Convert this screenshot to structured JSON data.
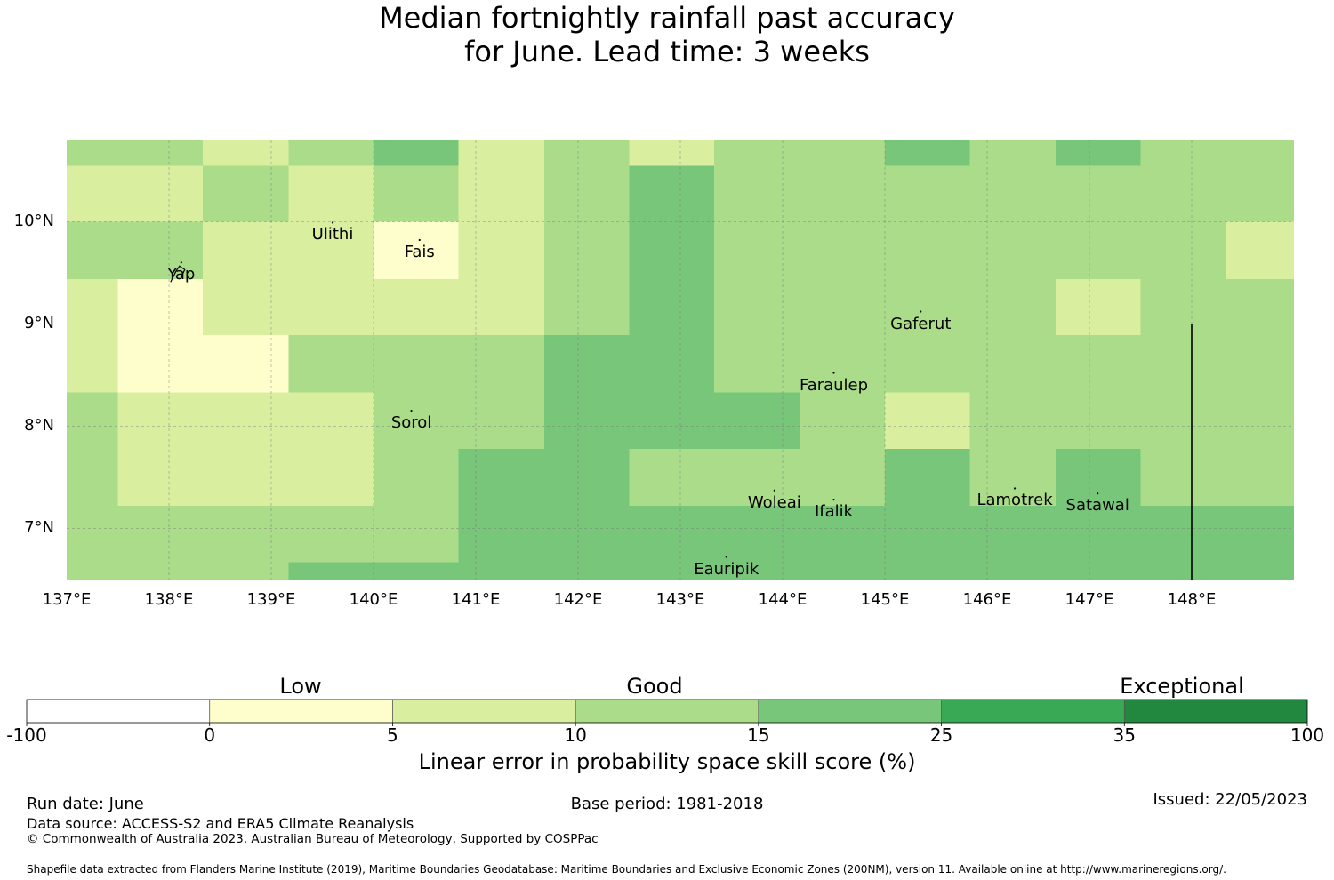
{
  "title": {
    "line1": "Median fortnightly rainfall past accuracy",
    "line2": "for June. Lead time: 3 weeks"
  },
  "map": {
    "lon_range": [
      137,
      149
    ],
    "lat_range": [
      6.5,
      10.8
    ],
    "x_ticks": [
      "137°E",
      "138°E",
      "139°E",
      "140°E",
      "141°E",
      "142°E",
      "143°E",
      "144°E",
      "145°E",
      "146°E",
      "147°E",
      "148°E"
    ],
    "y_ticks": [
      "10°N",
      "9°N",
      "8°N",
      "7°N"
    ],
    "gridlines": true,
    "cell_colors": [
      "#fefecc",
      "#d9ee9f",
      "#aadc89",
      "#78c67a"
    ],
    "grid_rows": [
      {
        "lat_top": 10.8,
        "lat_bottom": 10.55,
        "cells": [
          [
            137.0,
            138.33,
            2
          ],
          [
            138.33,
            139.17,
            1
          ],
          [
            139.17,
            140.0,
            2
          ],
          [
            140.0,
            140.83,
            3
          ],
          [
            140.83,
            141.67,
            1
          ],
          [
            141.67,
            142.5,
            2
          ],
          [
            142.5,
            143.33,
            1
          ],
          [
            143.33,
            145.0,
            2
          ],
          [
            145.0,
            145.83,
            3
          ],
          [
            145.83,
            146.67,
            2
          ],
          [
            146.67,
            147.5,
            3
          ],
          [
            147.5,
            149.0,
            2
          ]
        ]
      },
      {
        "lat_top": 10.55,
        "lat_bottom": 10.0,
        "cells": [
          [
            137.0,
            138.33,
            1
          ],
          [
            138.33,
            139.17,
            2
          ],
          [
            139.17,
            140.0,
            1
          ],
          [
            140.0,
            140.83,
            2
          ],
          [
            140.83,
            141.67,
            1
          ],
          [
            141.67,
            142.5,
            2
          ],
          [
            142.5,
            143.33,
            3
          ],
          [
            143.33,
            149.0,
            2
          ]
        ]
      },
      {
        "lat_top": 10.0,
        "lat_bottom": 9.44,
        "cells": [
          [
            137.0,
            138.33,
            2
          ],
          [
            138.33,
            140.0,
            1
          ],
          [
            140.0,
            140.83,
            0
          ],
          [
            140.83,
            141.67,
            1
          ],
          [
            141.67,
            142.5,
            2
          ],
          [
            142.5,
            143.33,
            3
          ],
          [
            143.33,
            148.33,
            2
          ],
          [
            148.33,
            149.0,
            1
          ]
        ]
      },
      {
        "lat_top": 9.44,
        "lat_bottom": 8.89,
        "cells": [
          [
            137.0,
            137.5,
            1
          ],
          [
            137.5,
            138.33,
            0
          ],
          [
            138.33,
            141.67,
            1
          ],
          [
            141.67,
            142.5,
            2
          ],
          [
            142.5,
            143.33,
            3
          ],
          [
            143.33,
            146.67,
            2
          ],
          [
            146.67,
            147.5,
            1
          ],
          [
            147.5,
            149.0,
            2
          ]
        ]
      },
      {
        "lat_top": 8.89,
        "lat_bottom": 8.33,
        "cells": [
          [
            137.0,
            137.5,
            1
          ],
          [
            137.5,
            139.17,
            0
          ],
          [
            139.17,
            141.67,
            2
          ],
          [
            141.67,
            143.33,
            3
          ],
          [
            143.33,
            149.0,
            2
          ]
        ]
      },
      {
        "lat_top": 8.33,
        "lat_bottom": 7.78,
        "cells": [
          [
            137.0,
            137.5,
            2
          ],
          [
            137.5,
            140.0,
            1
          ],
          [
            140.0,
            141.67,
            2
          ],
          [
            141.67,
            144.17,
            3
          ],
          [
            144.17,
            145.0,
            2
          ],
          [
            145.0,
            145.83,
            1
          ],
          [
            145.83,
            149.0,
            2
          ]
        ]
      },
      {
        "lat_top": 7.78,
        "lat_bottom": 7.22,
        "cells": [
          [
            137.0,
            137.5,
            2
          ],
          [
            137.5,
            140.0,
            1
          ],
          [
            140.0,
            140.83,
            2
          ],
          [
            140.83,
            142.5,
            3
          ],
          [
            142.5,
            145.0,
            2
          ],
          [
            145.0,
            145.83,
            3
          ],
          [
            145.83,
            146.67,
            2
          ],
          [
            146.67,
            147.5,
            3
          ],
          [
            147.5,
            149.0,
            2
          ]
        ]
      },
      {
        "lat_top": 7.22,
        "lat_bottom": 6.67,
        "cells": [
          [
            137.0,
            140.83,
            2
          ],
          [
            140.83,
            149.0,
            3
          ]
        ]
      },
      {
        "lat_top": 6.67,
        "lat_bottom": 6.5,
        "cells": [
          [
            137.0,
            139.17,
            2
          ],
          [
            139.17,
            149.0,
            3
          ]
        ]
      }
    ],
    "boundary_line": {
      "lon": 148.0,
      "lat_from": 6.5,
      "lat_to": 9.0
    },
    "places": [
      {
        "name": "Yap",
        "lon": 138.12,
        "lat": 9.48
      },
      {
        "name": "Ulithi",
        "lon": 139.6,
        "lat": 9.87
      },
      {
        "name": "Fais",
        "lon": 140.45,
        "lat": 9.7
      },
      {
        "name": "Gaferut",
        "lon": 145.35,
        "lat": 9.0
      },
      {
        "name": "Faraulep",
        "lon": 144.5,
        "lat": 8.4
      },
      {
        "name": "Sorol",
        "lon": 140.37,
        "lat": 8.03
      },
      {
        "name": "Woleai",
        "lon": 143.92,
        "lat": 7.25
      },
      {
        "name": "Ifalik",
        "lon": 144.5,
        "lat": 7.16
      },
      {
        "name": "Lamotrek",
        "lon": 146.27,
        "lat": 7.27
      },
      {
        "name": "Satawal",
        "lon": 147.08,
        "lat": 7.22
      },
      {
        "name": "Eauripik",
        "lon": 143.45,
        "lat": 6.6
      }
    ]
  },
  "legend": {
    "categories": [
      "Low",
      "Good",
      "Exceptional"
    ],
    "bins": [
      {
        "color": "#ffffff"
      },
      {
        "color": "#fefecc"
      },
      {
        "color": "#d9ee9f"
      },
      {
        "color": "#aadc89"
      },
      {
        "color": "#78c67a"
      },
      {
        "color": "#3aa956"
      },
      {
        "color": "#22883f"
      }
    ],
    "tick_labels": [
      "-100",
      "0",
      "5",
      "10",
      "15",
      "25",
      "35",
      "100"
    ],
    "axis_label": "Linear error in probability space skill score (%)"
  },
  "footer": {
    "run_date": "Run date: June",
    "base_period": "Base period: 1981-2018",
    "issued": "Issued: 22/05/2023",
    "data_source": "Data source: ACCESS-S2 and ERA5 Climate Reanalysis",
    "copyright": "© Commonwealth of Australia 2023, Australian Bureau of Meteorology, Supported by COSPPac",
    "shapefile": "Shapefile data extracted from Flanders Marine Institute (2019), Maritime Boundaries Geodatabase: Maritime Boundaries and Exclusive Economic Zones (200NM), version 11. Available online at http://www.marineregions.org/."
  }
}
